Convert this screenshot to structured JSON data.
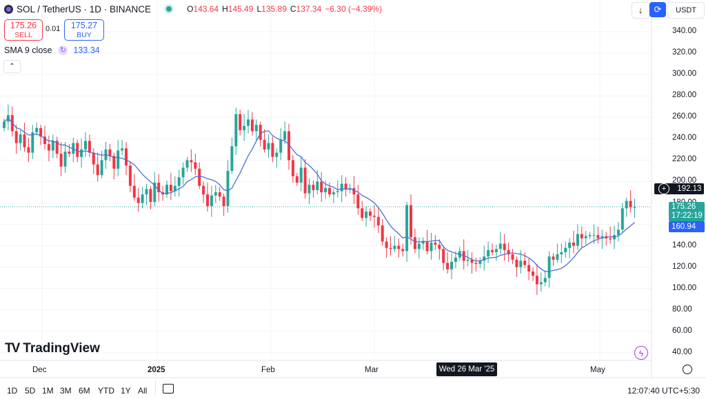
{
  "header": {
    "title": "SOL / TetherUS · 1D · BINANCE",
    "open_label": "O",
    "open": "143.64",
    "high_label": "H",
    "high": "145.49",
    "low_label": "L",
    "low": "135.89",
    "close_label": "C",
    "close": "137.34",
    "change": "−6.30 (−4.39%)",
    "currency": "USDT"
  },
  "trade": {
    "sell_price": "175.26",
    "sell_label": "SELL",
    "spread": "0.01",
    "buy_price": "175.27",
    "buy_label": "BUY"
  },
  "indicator": {
    "name": "SMA 9 close",
    "value": "133.34"
  },
  "price_tags": {
    "crosshair": "192.13",
    "last": "175.26",
    "countdown": "17:22:19",
    "sma": "160.94"
  },
  "crosshair_date": "Wed 26 Mar '25",
  "branding": {
    "name": "TradingView"
  },
  "ranges": [
    "1D",
    "5D",
    "1M",
    "3M",
    "6M",
    "YTD",
    "1Y",
    "All"
  ],
  "clock": "12:07:40 UTC+5:30",
  "colors": {
    "up": "#26a69a",
    "down": "#f23645",
    "sma": "#4a6fd8",
    "accent": "#2962ff"
  },
  "chart_data": {
    "type": "candlestick",
    "title": "SOL / TetherUS · 1D · BINANCE",
    "ylim": [
      30,
      350
    ],
    "y_ticks": [
      40,
      60,
      80,
      100,
      120,
      140,
      160,
      180,
      200,
      220,
      240,
      260,
      280,
      300,
      320,
      340
    ],
    "x_tick_labels": [
      "Dec",
      "2025",
      "Feb",
      "Mar",
      "May"
    ],
    "last_price": 175.26,
    "sma_period": 9,
    "close_series": [
      256,
      262,
      247,
      236,
      244,
      232,
      227,
      246,
      250,
      242,
      235,
      229,
      238,
      226,
      214,
      228,
      226,
      236,
      223,
      230,
      238,
      227,
      216,
      206,
      220,
      230,
      224,
      212,
      229,
      231,
      215,
      196,
      185,
      180,
      188,
      193,
      181,
      199,
      190,
      188,
      197,
      191,
      196,
      204,
      213,
      220,
      218,
      212,
      196,
      188,
      177,
      187,
      190,
      186,
      177,
      210,
      233,
      263,
      248,
      252,
      258,
      247,
      253,
      239,
      230,
      236,
      223,
      227,
      239,
      247,
      220,
      205,
      199,
      213,
      189,
      197,
      192,
      200,
      190,
      194,
      188,
      190,
      191,
      198,
      193,
      194,
      188,
      175,
      166,
      172,
      168,
      167,
      159,
      144,
      138,
      137,
      140,
      137,
      135,
      178,
      148,
      137,
      142,
      144,
      135,
      143,
      141,
      137,
      124,
      118,
      125,
      129,
      135,
      126,
      127,
      124,
      123,
      126,
      130,
      136,
      134,
      137,
      142,
      136,
      132,
      127,
      120,
      126,
      122,
      116,
      112,
      104,
      106,
      110,
      130,
      127,
      132,
      134,
      138,
      143,
      140,
      151,
      147,
      149,
      150,
      150,
      147,
      149,
      147,
      146,
      150,
      155,
      175,
      182,
      176,
      176
    ]
  }
}
